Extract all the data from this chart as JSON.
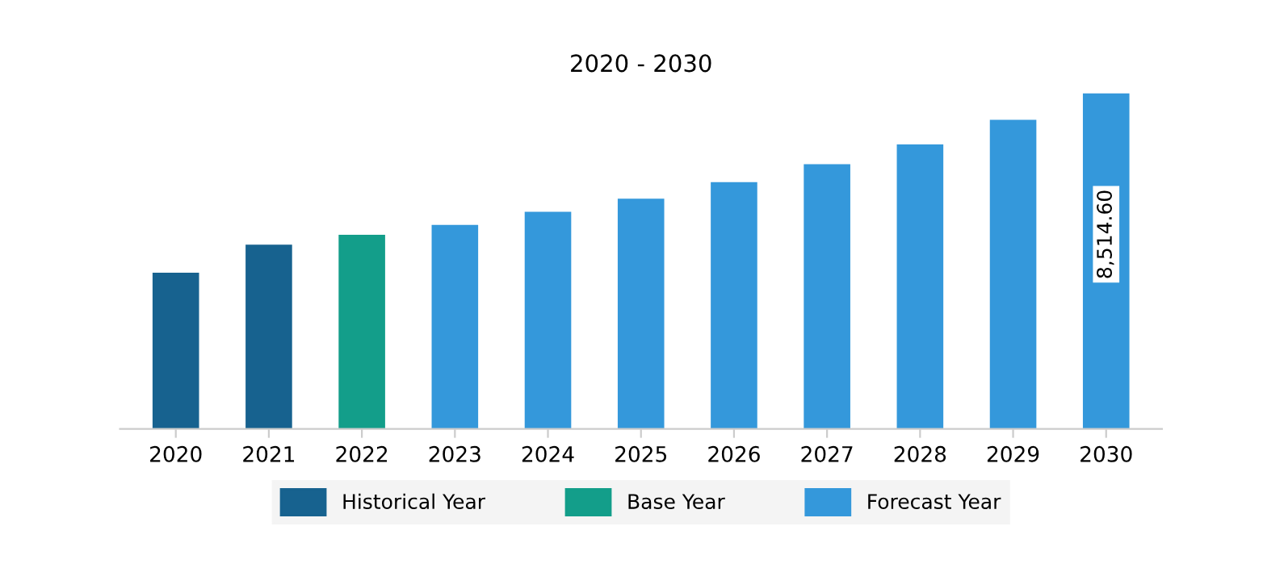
{
  "chart_data": {
    "type": "bar",
    "title": "2020 - 2030",
    "categories": [
      "2020",
      "2021",
      "2022",
      "2023",
      "2024",
      "2025",
      "2026",
      "2027",
      "2028",
      "2029",
      "2030"
    ],
    "series": [
      {
        "name": "Historical Year",
        "color": "#17628f",
        "values": [
          3965,
          4675,
          null,
          null,
          null,
          null,
          null,
          null,
          null,
          null,
          null
        ]
      },
      {
        "name": "Base Year",
        "color": "#139e8a",
        "values": [
          null,
          null,
          4925,
          null,
          null,
          null,
          null,
          null,
          null,
          null,
          null
        ]
      },
      {
        "name": "Forecast Year",
        "color": "#3498db",
        "values": [
          null,
          null,
          null,
          5176,
          5510,
          5843,
          6261,
          6720,
          7221,
          7847,
          8514.6
        ],
        "value_labels": [
          null,
          null,
          null,
          null,
          null,
          null,
          null,
          null,
          null,
          null,
          "8,514.60"
        ]
      }
    ],
    "legend": "bottom",
    "grid": false
  }
}
